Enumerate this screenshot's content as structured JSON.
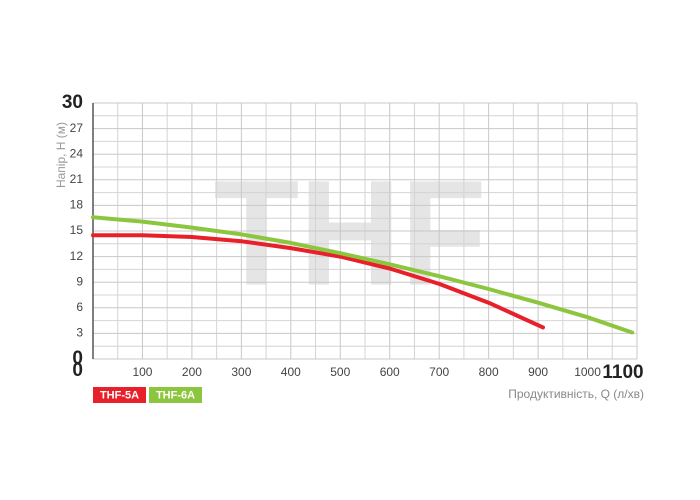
{
  "chart_data": {
    "type": "line",
    "watermark": "THF",
    "y_label": "Напір, Н (м)",
    "x_label": "Продуктивність, Q (л/хв)",
    "xlim": [
      0,
      1100
    ],
    "xticks": [
      0,
      100,
      200,
      300,
      400,
      500,
      600,
      700,
      800,
      900,
      1000,
      1100
    ],
    "ylim": [
      0,
      30
    ],
    "yticks": [
      0,
      3,
      6,
      9,
      12,
      15,
      18,
      21,
      24,
      27,
      30
    ],
    "grid": true,
    "series": [
      {
        "name": "THF-5A",
        "color": "#e8202a",
        "x": [
          0,
          100,
          200,
          300,
          400,
          500,
          600,
          700,
          800,
          910
        ],
        "values": [
          14.5,
          14.5,
          14.3,
          13.8,
          13.0,
          12.0,
          10.6,
          8.8,
          6.6,
          3.7
        ]
      },
      {
        "name": "THF-6A",
        "color": "#8cc63f",
        "x": [
          0,
          100,
          200,
          300,
          400,
          500,
          600,
          700,
          800,
          900,
          1000,
          1090
        ],
        "values": [
          16.6,
          16.1,
          15.4,
          14.6,
          13.6,
          12.4,
          11.1,
          9.7,
          8.2,
          6.6,
          4.9,
          3.1
        ]
      }
    ]
  }
}
